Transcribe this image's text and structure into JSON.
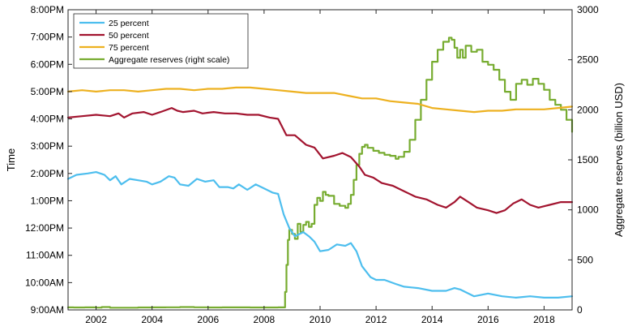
{
  "chart_data": {
    "type": "line",
    "ylabel": "Time",
    "y2label": "Aggregate reserves (billion USD)",
    "xlim": [
      2001,
      2019
    ],
    "ylim_hours": [
      9,
      20
    ],
    "y2lim": [
      0,
      3000
    ],
    "x_ticks": [
      2002,
      2004,
      2006,
      2008,
      2010,
      2012,
      2014,
      2016,
      2018
    ],
    "y_ticks": [
      {
        "v": 9,
        "label": "9:00AM"
      },
      {
        "v": 10,
        "label": "10:00AM"
      },
      {
        "v": 11,
        "label": "11:00AM"
      },
      {
        "v": 12,
        "label": "12:00PM"
      },
      {
        "v": 13,
        "label": "1:00PM"
      },
      {
        "v": 14,
        "label": "2:00PM"
      },
      {
        "v": 15,
        "label": "3:00PM"
      },
      {
        "v": 16,
        "label": "4:00PM"
      },
      {
        "v": 17,
        "label": "5:00PM"
      },
      {
        "v": 18,
        "label": "6:00PM"
      },
      {
        "v": 19,
        "label": "7:00PM"
      },
      {
        "v": 20,
        "label": "8:00PM"
      }
    ],
    "y2_ticks": [
      0,
      500,
      1000,
      1500,
      2000,
      2500,
      3000
    ],
    "legend_position": "top-left",
    "series": [
      {
        "name": "25 percent",
        "color": "#4DBEEE",
        "axis": "left",
        "points": [
          [
            2001.0,
            13.8
          ],
          [
            2001.3,
            13.95
          ],
          [
            2001.7,
            14.0
          ],
          [
            2002.0,
            14.05
          ],
          [
            2002.3,
            13.95
          ],
          [
            2002.5,
            13.75
          ],
          [
            2002.7,
            13.9
          ],
          [
            2002.9,
            13.6
          ],
          [
            2003.2,
            13.8
          ],
          [
            2003.5,
            13.75
          ],
          [
            2003.8,
            13.7
          ],
          [
            2004.0,
            13.6
          ],
          [
            2004.3,
            13.7
          ],
          [
            2004.6,
            13.9
          ],
          [
            2004.8,
            13.85
          ],
          [
            2005.0,
            13.6
          ],
          [
            2005.3,
            13.55
          ],
          [
            2005.6,
            13.8
          ],
          [
            2005.9,
            13.7
          ],
          [
            2006.2,
            13.75
          ],
          [
            2006.4,
            13.5
          ],
          [
            2006.7,
            13.5
          ],
          [
            2006.9,
            13.45
          ],
          [
            2007.1,
            13.6
          ],
          [
            2007.4,
            13.4
          ],
          [
            2007.7,
            13.6
          ],
          [
            2008.0,
            13.45
          ],
          [
            2008.3,
            13.3
          ],
          [
            2008.5,
            13.25
          ],
          [
            2008.7,
            12.5
          ],
          [
            2008.9,
            12.0
          ],
          [
            2009.1,
            11.7
          ],
          [
            2009.4,
            11.85
          ],
          [
            2009.6,
            11.7
          ],
          [
            2009.8,
            11.5
          ],
          [
            2010.0,
            11.15
          ],
          [
            2010.3,
            11.2
          ],
          [
            2010.6,
            11.4
          ],
          [
            2010.9,
            11.35
          ],
          [
            2011.1,
            11.45
          ],
          [
            2011.3,
            11.15
          ],
          [
            2011.5,
            10.6
          ],
          [
            2011.8,
            10.2
          ],
          [
            2012.0,
            10.1
          ],
          [
            2012.3,
            10.1
          ],
          [
            2012.7,
            9.95
          ],
          [
            2013.0,
            9.85
          ],
          [
            2013.5,
            9.8
          ],
          [
            2014.0,
            9.7
          ],
          [
            2014.5,
            9.7
          ],
          [
            2014.8,
            9.8
          ],
          [
            2015.0,
            9.75
          ],
          [
            2015.5,
            9.5
          ],
          [
            2016.0,
            9.6
          ],
          [
            2016.5,
            9.5
          ],
          [
            2017.0,
            9.45
          ],
          [
            2017.5,
            9.5
          ],
          [
            2018.0,
            9.45
          ],
          [
            2018.5,
            9.45
          ],
          [
            2019.0,
            9.5
          ]
        ]
      },
      {
        "name": "50 percent",
        "color": "#A2142F",
        "axis": "left",
        "points": [
          [
            2001.0,
            16.05
          ],
          [
            2001.5,
            16.1
          ],
          [
            2002.0,
            16.15
          ],
          [
            2002.5,
            16.1
          ],
          [
            2002.8,
            16.2
          ],
          [
            2003.0,
            16.05
          ],
          [
            2003.3,
            16.2
          ],
          [
            2003.7,
            16.25
          ],
          [
            2004.0,
            16.15
          ],
          [
            2004.3,
            16.25
          ],
          [
            2004.7,
            16.4
          ],
          [
            2004.9,
            16.3
          ],
          [
            2005.1,
            16.25
          ],
          [
            2005.5,
            16.3
          ],
          [
            2005.8,
            16.2
          ],
          [
            2006.2,
            16.25
          ],
          [
            2006.6,
            16.2
          ],
          [
            2007.0,
            16.2
          ],
          [
            2007.4,
            16.15
          ],
          [
            2007.8,
            16.15
          ],
          [
            2008.2,
            16.05
          ],
          [
            2008.5,
            16.0
          ],
          [
            2008.8,
            15.4
          ],
          [
            2009.1,
            15.4
          ],
          [
            2009.5,
            15.05
          ],
          [
            2009.8,
            14.95
          ],
          [
            2010.1,
            14.55
          ],
          [
            2010.5,
            14.65
          ],
          [
            2010.8,
            14.75
          ],
          [
            2011.1,
            14.6
          ],
          [
            2011.4,
            14.25
          ],
          [
            2011.6,
            13.95
          ],
          [
            2011.9,
            13.85
          ],
          [
            2012.2,
            13.65
          ],
          [
            2012.6,
            13.55
          ],
          [
            2013.0,
            13.35
          ],
          [
            2013.4,
            13.15
          ],
          [
            2013.8,
            13.05
          ],
          [
            2014.2,
            12.85
          ],
          [
            2014.5,
            12.75
          ],
          [
            2014.8,
            12.95
          ],
          [
            2015.0,
            13.15
          ],
          [
            2015.3,
            12.95
          ],
          [
            2015.6,
            12.75
          ],
          [
            2016.0,
            12.65
          ],
          [
            2016.3,
            12.55
          ],
          [
            2016.6,
            12.65
          ],
          [
            2016.9,
            12.9
          ],
          [
            2017.2,
            13.05
          ],
          [
            2017.5,
            12.85
          ],
          [
            2017.8,
            12.75
          ],
          [
            2018.2,
            12.85
          ],
          [
            2018.6,
            12.95
          ],
          [
            2019.0,
            12.95
          ]
        ]
      },
      {
        "name": "75 percent",
        "color": "#EDB120",
        "axis": "left",
        "points": [
          [
            2001.0,
            17.0
          ],
          [
            2001.5,
            17.05
          ],
          [
            2002.0,
            17.0
          ],
          [
            2002.5,
            17.05
          ],
          [
            2003.0,
            17.05
          ],
          [
            2003.5,
            17.0
          ],
          [
            2004.0,
            17.05
          ],
          [
            2004.5,
            17.1
          ],
          [
            2005.0,
            17.1
          ],
          [
            2005.5,
            17.05
          ],
          [
            2006.0,
            17.1
          ],
          [
            2006.5,
            17.1
          ],
          [
            2007.0,
            17.15
          ],
          [
            2007.5,
            17.15
          ],
          [
            2008.0,
            17.1
          ],
          [
            2008.5,
            17.05
          ],
          [
            2009.0,
            17.0
          ],
          [
            2009.5,
            16.95
          ],
          [
            2010.0,
            16.95
          ],
          [
            2010.5,
            16.95
          ],
          [
            2011.0,
            16.85
          ],
          [
            2011.5,
            16.75
          ],
          [
            2012.0,
            16.75
          ],
          [
            2012.5,
            16.65
          ],
          [
            2013.0,
            16.6
          ],
          [
            2013.5,
            16.55
          ],
          [
            2014.0,
            16.4
          ],
          [
            2014.5,
            16.35
          ],
          [
            2015.0,
            16.3
          ],
          [
            2015.5,
            16.25
          ],
          [
            2016.0,
            16.3
          ],
          [
            2016.5,
            16.3
          ],
          [
            2017.0,
            16.35
          ],
          [
            2017.5,
            16.35
          ],
          [
            2018.0,
            16.35
          ],
          [
            2018.5,
            16.4
          ],
          [
            2019.0,
            16.45
          ]
        ]
      },
      {
        "name": "Aggregate reserves (right scale)",
        "color": "#77AC30",
        "axis": "right",
        "step": true,
        "points": [
          [
            2001.0,
            25
          ],
          [
            2001.2,
            24
          ],
          [
            2001.6,
            25
          ],
          [
            2002.0,
            23
          ],
          [
            2002.2,
            28
          ],
          [
            2002.5,
            22
          ],
          [
            2003.0,
            22
          ],
          [
            2003.5,
            24
          ],
          [
            2004.0,
            25
          ],
          [
            2004.5,
            26
          ],
          [
            2005.0,
            28
          ],
          [
            2005.5,
            26
          ],
          [
            2006.0,
            24
          ],
          [
            2006.5,
            25
          ],
          [
            2007.0,
            25
          ],
          [
            2007.5,
            24
          ],
          [
            2008.0,
            24
          ],
          [
            2008.5,
            25
          ],
          [
            2008.72,
            25
          ],
          [
            2008.75,
            180
          ],
          [
            2008.8,
            450
          ],
          [
            2008.85,
            700
          ],
          [
            2008.9,
            800
          ],
          [
            2009.0,
            760
          ],
          [
            2009.1,
            710
          ],
          [
            2009.2,
            860
          ],
          [
            2009.3,
            780
          ],
          [
            2009.4,
            850
          ],
          [
            2009.5,
            880
          ],
          [
            2009.6,
            830
          ],
          [
            2009.7,
            860
          ],
          [
            2009.8,
            1050
          ],
          [
            2009.9,
            1120
          ],
          [
            2010.0,
            1090
          ],
          [
            2010.1,
            1180
          ],
          [
            2010.2,
            1150
          ],
          [
            2010.3,
            1140
          ],
          [
            2010.5,
            1060
          ],
          [
            2010.7,
            1040
          ],
          [
            2010.9,
            1020
          ],
          [
            2011.0,
            1060
          ],
          [
            2011.1,
            1150
          ],
          [
            2011.2,
            1300
          ],
          [
            2011.3,
            1450
          ],
          [
            2011.4,
            1560
          ],
          [
            2011.5,
            1630
          ],
          [
            2011.6,
            1650
          ],
          [
            2011.7,
            1620
          ],
          [
            2011.9,
            1590
          ],
          [
            2012.1,
            1570
          ],
          [
            2012.3,
            1550
          ],
          [
            2012.5,
            1540
          ],
          [
            2012.7,
            1510
          ],
          [
            2012.8,
            1530
          ],
          [
            2013.0,
            1580
          ],
          [
            2013.2,
            1700
          ],
          [
            2013.4,
            1900
          ],
          [
            2013.6,
            2100
          ],
          [
            2013.8,
            2300
          ],
          [
            2014.0,
            2480
          ],
          [
            2014.2,
            2600
          ],
          [
            2014.4,
            2680
          ],
          [
            2014.6,
            2720
          ],
          [
            2014.7,
            2700
          ],
          [
            2014.8,
            2620
          ],
          [
            2014.9,
            2520
          ],
          [
            2015.0,
            2600
          ],
          [
            2015.1,
            2520
          ],
          [
            2015.2,
            2640
          ],
          [
            2015.4,
            2580
          ],
          [
            2015.6,
            2600
          ],
          [
            2015.8,
            2480
          ],
          [
            2016.0,
            2450
          ],
          [
            2016.2,
            2400
          ],
          [
            2016.4,
            2300
          ],
          [
            2016.6,
            2180
          ],
          [
            2016.8,
            2100
          ],
          [
            2017.0,
            2260
          ],
          [
            2017.2,
            2300
          ],
          [
            2017.4,
            2250
          ],
          [
            2017.6,
            2310
          ],
          [
            2017.8,
            2260
          ],
          [
            2018.0,
            2200
          ],
          [
            2018.2,
            2100
          ],
          [
            2018.4,
            2050
          ],
          [
            2018.6,
            2000
          ],
          [
            2018.8,
            1900
          ],
          [
            2019.0,
            1780
          ]
        ]
      }
    ]
  }
}
